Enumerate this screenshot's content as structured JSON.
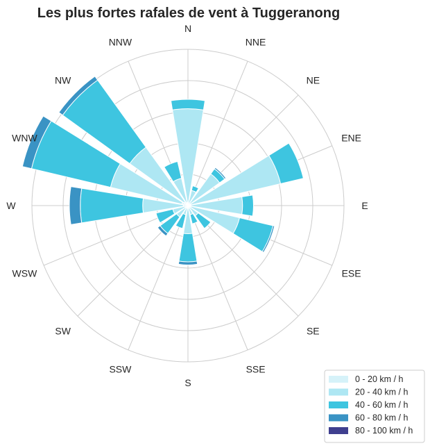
{
  "chart_data": {
    "type": "windrose",
    "title": "Les plus fortes rafales de vent à Tuggeranong",
    "directions": [
      "N",
      "NNE",
      "NE",
      "ENE",
      "E",
      "ESE",
      "SE",
      "SSE",
      "S",
      "SSW",
      "SW",
      "WSW",
      "W",
      "WNW",
      "NW",
      "NNW"
    ],
    "radial_axis": {
      "min": 0,
      "max": 10,
      "grid_step": 2,
      "tick_labels_shown": false
    },
    "stacking": "cumulative",
    "legend": {
      "position": "bottom-right"
    },
    "series": [
      {
        "name": "0 - 20 km / h",
        "color": "#d6f2f9",
        "values": [
          0.2,
          0.1,
          0.1,
          0.2,
          0.2,
          0.2,
          0.1,
          0.1,
          0.2,
          0.1,
          0.2,
          0.2,
          0.3,
          0.4,
          0.3,
          0.2
        ]
      },
      {
        "name": "20 - 40 km / h",
        "color": "#aee7f3",
        "values": [
          6.0,
          0.9,
          2.4,
          5.9,
          3.3,
          3.2,
          0.7,
          0.5,
          1.6,
          0.5,
          0.7,
          0.8,
          2.6,
          4.7,
          4.3,
          1.6
        ]
      },
      {
        "name": "40 - 60 km / h",
        "color": "#3ec5e0",
        "values": [
          0.6,
          0.3,
          0.4,
          1.5,
          0.7,
          2.2,
          1.0,
          0.6,
          1.8,
          0.9,
          1.3,
          1.1,
          4.0,
          5.2,
          5.3,
          1.1
        ]
      },
      {
        "name": "60 - 80 km / h",
        "color": "#3a93c4",
        "values": [
          0,
          0,
          0.1,
          0,
          0,
          0.1,
          0,
          0,
          0.2,
          0,
          0.2,
          0,
          0.7,
          0.6,
          0.3,
          0
        ]
      },
      {
        "name": "80 - 100 km / h",
        "color": "#3f3f8f",
        "values": [
          0,
          0,
          0,
          0,
          0,
          0,
          0,
          0,
          0,
          0,
          0,
          0,
          0,
          0,
          0,
          0
        ]
      }
    ]
  }
}
